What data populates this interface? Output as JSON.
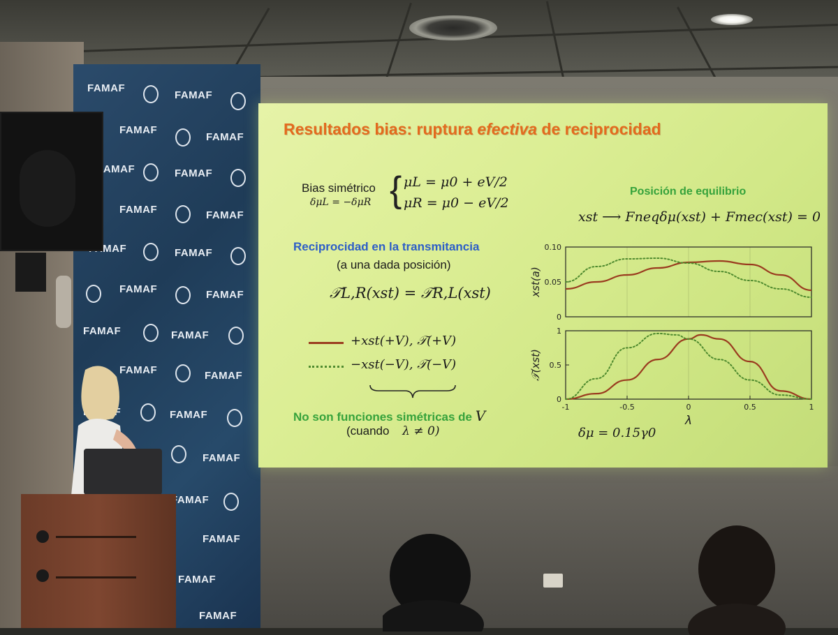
{
  "banner": {
    "logo_text": "FAMAF"
  },
  "slide": {
    "title_part1": "Resultados bias: ruptura ",
    "title_em": "efectiva",
    "title_part2": " de reciprocidad",
    "bias_label": "Bias simétrico",
    "bias_condition": "δμL = −δμR",
    "mu_left": "μL = μ0 + eV/2",
    "mu_right": "μR = μ0 − eV/2",
    "equilibrium_heading": "Posición de equilibrio",
    "equilibrium_eq": "xst ⟶ Fneqδμ(xst) + Fmec(xst) = 0",
    "reciprocity_heading": "Reciprocidad en la transmitancia",
    "reciprocity_sub": "(a una dada posición)",
    "reciprocity_eq": "𝒯L,R(xst) = 𝒯R,L(xst)",
    "legend_solid": "+xst(+V), 𝒯(+V)",
    "legend_dotted": "−xst(−V), 𝒯(−V)",
    "conclusion_text": "No son funciones simétricas de",
    "conclusion_var": "V",
    "conclusion_cond_word": "(cuando",
    "conclusion_cond_eq": "λ ≠ 0)",
    "dmu_label": "δμ = 0.15γ0"
  },
  "chart_data": [
    {
      "type": "line",
      "title": "",
      "ylabel": "xst(a)",
      "xlabel": "",
      "xlim": [
        -1,
        1
      ],
      "ylim": [
        0,
        0.1
      ],
      "yticks": [
        "0",
        "0.05",
        "0.10"
      ],
      "series": [
        {
          "name": "+xst(+V)",
          "style": "solid",
          "color": "#9a3b1f",
          "x": [
            -1,
            -0.75,
            -0.5,
            -0.25,
            0,
            0.25,
            0.5,
            0.75,
            1
          ],
          "y": [
            0.04,
            0.05,
            0.06,
            0.07,
            0.078,
            0.08,
            0.075,
            0.06,
            0.038
          ]
        },
        {
          "name": "−xst(−V)",
          "style": "dotted",
          "color": "#4e8a2e",
          "x": [
            -1,
            -0.75,
            -0.5,
            -0.25,
            0,
            0.25,
            0.5,
            0.75,
            1
          ],
          "y": [
            0.05,
            0.072,
            0.083,
            0.084,
            0.077,
            0.065,
            0.052,
            0.04,
            0.028
          ]
        }
      ]
    },
    {
      "type": "line",
      "title": "",
      "ylabel": "𝒯(xst)",
      "xlabel": "λ",
      "xlim": [
        -1,
        1
      ],
      "ylim": [
        0,
        1
      ],
      "xticks": [
        "-1",
        "-0.5",
        "0",
        "0.5",
        "1"
      ],
      "yticks": [
        "0",
        "0.5",
        "1"
      ],
      "series": [
        {
          "name": "𝒯(+V)",
          "style": "solid",
          "color": "#9a3b1f",
          "x": [
            -1,
            -0.75,
            -0.5,
            -0.25,
            0,
            0.1,
            0.25,
            0.5,
            0.75,
            1
          ],
          "y": [
            0,
            0.08,
            0.28,
            0.58,
            0.88,
            0.94,
            0.88,
            0.55,
            0.12,
            0
          ]
        },
        {
          "name": "𝒯(−V)",
          "style": "dotted",
          "color": "#4e8a2e",
          "x": [
            -1,
            -0.75,
            -0.5,
            -0.25,
            -0.1,
            0,
            0.25,
            0.5,
            0.75,
            1
          ],
          "y": [
            0,
            0.3,
            0.75,
            0.96,
            0.94,
            0.88,
            0.58,
            0.28,
            0.06,
            0
          ]
        }
      ]
    }
  ]
}
